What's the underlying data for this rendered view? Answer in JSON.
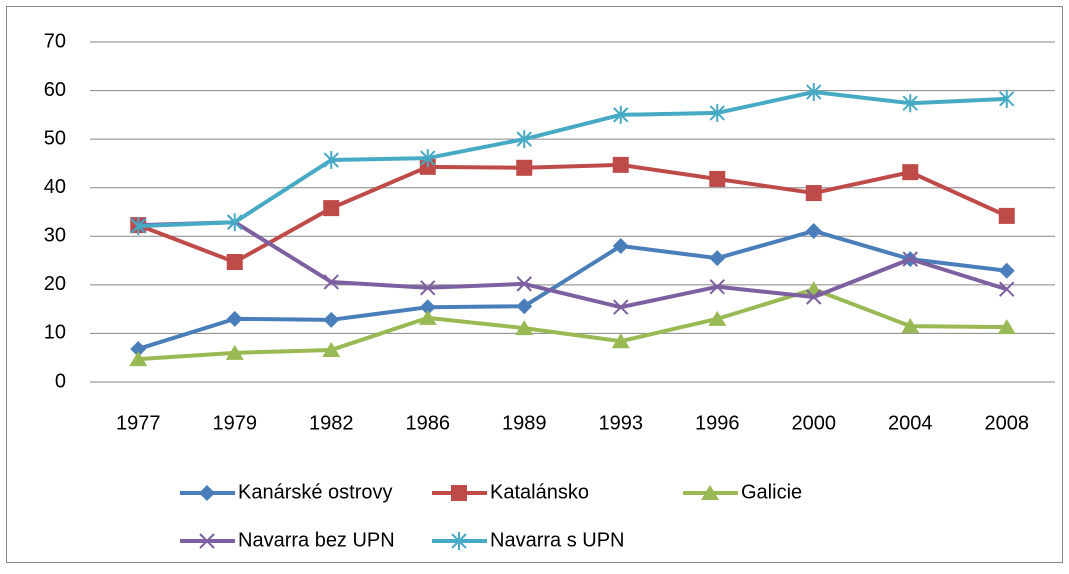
{
  "chart_data": {
    "type": "line",
    "categories": [
      "1977",
      "1979",
      "1982",
      "1986",
      "1989",
      "1993",
      "1996",
      "2000",
      "2004",
      "2008"
    ],
    "series": [
      {
        "name": "Kanárské ostrovy",
        "color": "#4a7ebb",
        "marker": "diamond",
        "values": [
          6.8,
          13.0,
          12.8,
          15.4,
          15.6,
          28.0,
          25.5,
          31.1,
          25.3,
          22.9
        ]
      },
      {
        "name": "Katalánsko",
        "color": "#be4b48",
        "marker": "square",
        "values": [
          32.3,
          24.7,
          35.8,
          44.3,
          44.1,
          44.7,
          41.8,
          38.9,
          43.2,
          34.2
        ]
      },
      {
        "name": "Galicie",
        "color": "#98b954",
        "marker": "triangle",
        "values": [
          4.7,
          6.0,
          6.6,
          13.2,
          11.1,
          8.4,
          13.0,
          19.1,
          11.5,
          11.3
        ]
      },
      {
        "name": "Navarra bez UPN",
        "color": "#7d60a0",
        "marker": "x",
        "values": [
          32.3,
          32.9,
          20.6,
          19.4,
          20.2,
          15.4,
          19.6,
          17.5,
          25.3,
          19.1
        ]
      },
      {
        "name": "Navarra s UPN",
        "color": "#46aac5",
        "marker": "star",
        "values": [
          32.1,
          32.9,
          45.7,
          46.1,
          50.0,
          55.0,
          55.4,
          59.7,
          57.4,
          58.3
        ]
      }
    ],
    "ylim": [
      0,
      70
    ],
    "yticks": [
      0,
      10,
      20,
      30,
      40,
      50,
      60,
      70
    ],
    "grid": true,
    "legend": "bottom"
  }
}
